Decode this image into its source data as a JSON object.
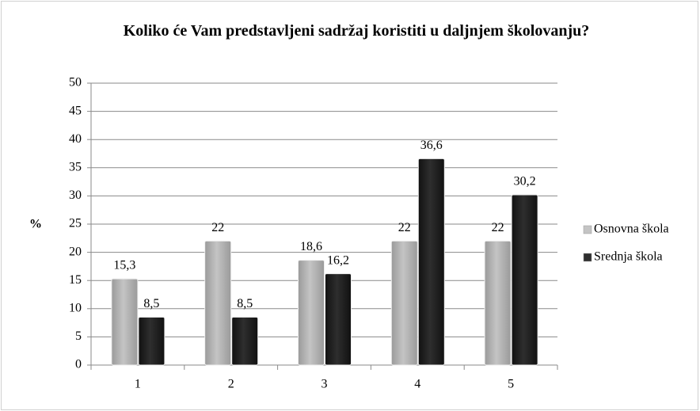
{
  "chart_data": {
    "type": "bar",
    "title": "Koliko će Vam predstavljeni sadržaj koristiti u daljnjem školovanju?",
    "y_label": "%",
    "categories": [
      "1",
      "2",
      "3",
      "4",
      "5"
    ],
    "series": [
      {
        "name": "Osnovna škola",
        "color": "#c4c4c4",
        "values": [
          15.3,
          22,
          18.6,
          22,
          22
        ],
        "value_labels": [
          "15,3",
          "22",
          "18,6",
          "22",
          "22"
        ]
      },
      {
        "name": "Srednja škola",
        "color": "#2e2e2e",
        "values": [
          8.5,
          8.5,
          16.2,
          36.6,
          30.2
        ],
        "value_labels": [
          "8,5",
          "8,5",
          "16,2",
          "36,6",
          "30,2"
        ]
      }
    ],
    "ylim": [
      0,
      50
    ],
    "yticks": [
      0,
      5,
      10,
      15,
      20,
      25,
      30,
      35,
      40,
      45,
      50
    ],
    "grid": true,
    "legend": "right"
  }
}
